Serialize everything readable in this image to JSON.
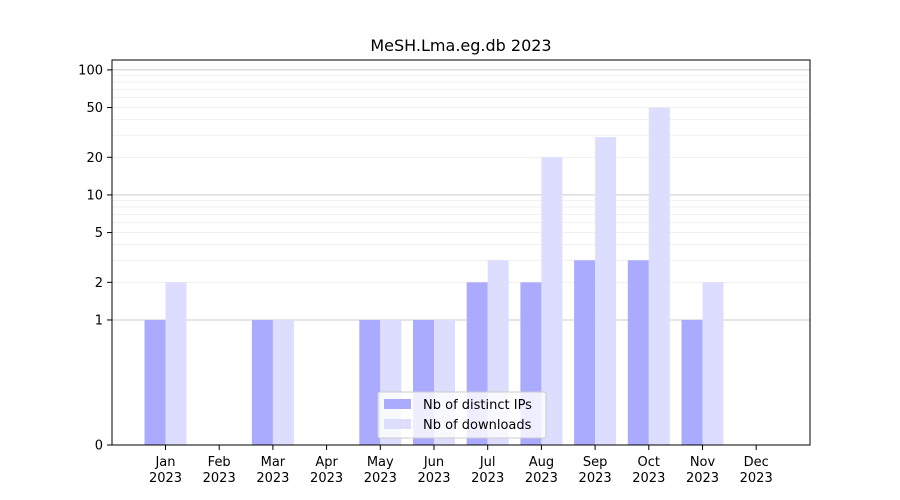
{
  "chart_data": {
    "type": "bar",
    "title": "MeSH.Lma.eg.db 2023",
    "xlabel": "",
    "ylabel": "",
    "categories": [
      "Jan",
      "Feb",
      "Mar",
      "Apr",
      "May",
      "Jun",
      "Jul",
      "Aug",
      "Sep",
      "Oct",
      "Nov",
      "Dec"
    ],
    "category_year": "2023",
    "yscale": "symlog",
    "ylim": [
      0,
      120
    ],
    "yticks": [
      0,
      1,
      2,
      5,
      10,
      20,
      50,
      100
    ],
    "grid": true,
    "legend_position": "lower-center",
    "series": [
      {
        "name": "Nb of distinct IPs",
        "color": "#aaaaff",
        "values": [
          1,
          0,
          1,
          0,
          1,
          1,
          2,
          2,
          3,
          3,
          1,
          0
        ]
      },
      {
        "name": "Nb of downloads",
        "color": "#ddddff",
        "values": [
          2,
          0,
          1,
          0,
          1,
          1,
          3,
          20,
          29,
          50,
          2,
          0
        ]
      }
    ]
  }
}
